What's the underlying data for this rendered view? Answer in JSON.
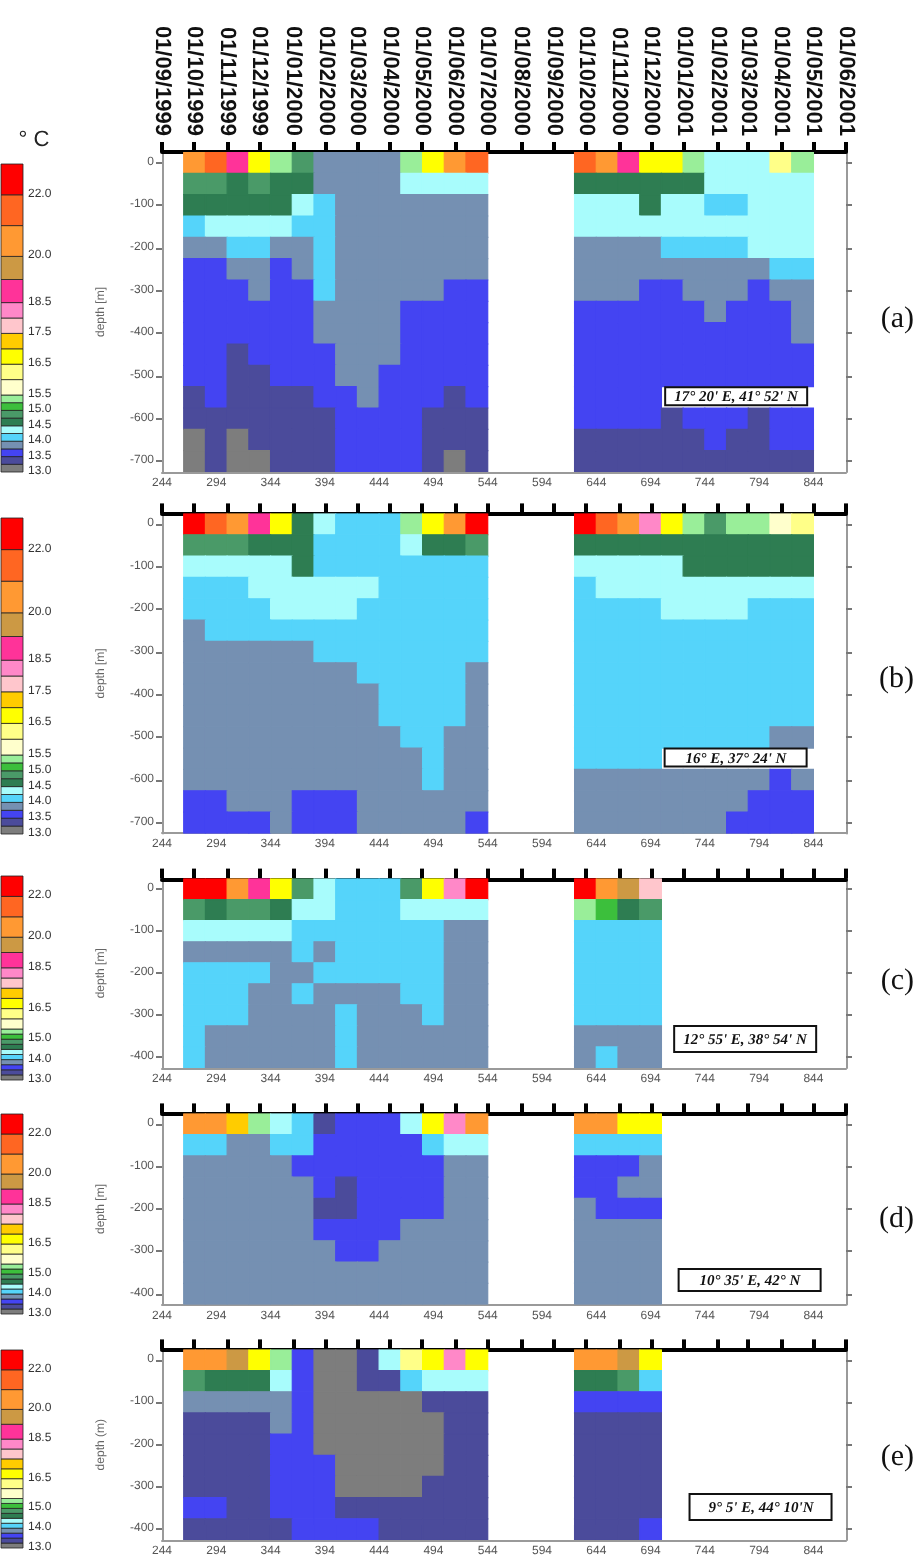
{
  "chart_data": [
    {
      "type": "heatmap",
      "ylabel": "depth [m]",
      "annotations": [
        "(a)",
        "17° 20' E, 41° 52' N"
      ],
      "clabel": "° C",
      "clim": [
        13,
        23
      ],
      "cticks": [
        {
          "value": 13,
          "label": "13.0"
        },
        13.5,
        {
          "value": 14,
          "label": "14.0"
        },
        14.5,
        {
          "value": 15,
          "label": "15.0"
        },
        15.5,
        16.5,
        17.5,
        18.5,
        {
          "value": 20,
          "label": "20.0"
        },
        {
          "value": 22,
          "label": "22.0"
        }
      ],
      "xlim": [
        244,
        874
      ],
      "xticks": [
        244,
        294,
        344,
        394,
        444,
        494,
        544,
        594,
        644,
        694,
        744,
        794,
        844
      ],
      "x2lim": [
        "1999-09-01",
        "2001-06-01"
      ],
      "x2ticks": [
        {
          "value": "1999-09-01",
          "label": "01/09/1999"
        },
        {
          "value": "1999-10-01",
          "label": "01/10/1999"
        },
        {
          "value": "1999-11-01",
          "label": "01/11/1999"
        },
        {
          "value": "1999-12-01",
          "label": "01/12/1999"
        },
        {
          "value": "2000-01-01",
          "label": "01/01/2000"
        },
        {
          "value": "2000-02-01",
          "label": "01/02/2000"
        },
        {
          "value": "2000-03-01",
          "label": "01/03/2000"
        },
        {
          "value": "2000-04-01",
          "label": "01/04/2000"
        },
        {
          "value": "2000-05-01",
          "label": "01/05/2000"
        },
        {
          "value": "2000-06-01",
          "label": "01/06/2000"
        },
        {
          "value": "2000-07-01",
          "label": "01/07/2000"
        },
        {
          "value": "2000-08-01",
          "label": "01/08/2000"
        },
        {
          "value": "2000-09-01",
          "label": "01/09/2000"
        },
        {
          "value": "2000-10-01",
          "label": "01/10/2000"
        },
        {
          "value": "2000-11-01",
          "label": "01/11/2000"
        },
        {
          "value": "2000-12-01",
          "label": "01/12/2000"
        },
        {
          "value": "2001-01-01",
          "label": "01/01/2001"
        },
        {
          "value": "2001-02-01",
          "label": "01/02/2001"
        },
        {
          "value": "2001-03-01",
          "label": "01/03/2001"
        },
        {
          "value": "2001-04-01",
          "label": "01/04/2001"
        },
        {
          "value": "2001-05-01",
          "label": "01/05/2001"
        },
        {
          "value": "2001-06-01",
          "label": "01/06/2001"
        }
      ],
      "x": [
        254,
        274,
        294,
        314,
        334,
        354,
        374,
        394,
        414,
        434,
        454,
        474,
        494,
        514,
        534,
        554,
        574,
        594,
        614,
        634,
        654,
        674,
        694,
        714,
        734,
        754,
        774,
        794,
        814,
        834,
        854
      ],
      "y_categories": [
        "0",
        null,
        "-100",
        null,
        "-200",
        null,
        "-300",
        null,
        "-400",
        null,
        "-500",
        null,
        "-600",
        null,
        "-700"
      ],
      "cells": [
        [
          null,
          20.5,
          21.5,
          18.9,
          16.8,
          15.4,
          14.9,
          13.9,
          13.9,
          13.9,
          13.9,
          15.4,
          16.8,
          20.5,
          21.5,
          null,
          null,
          null,
          null,
          21.5,
          20.5,
          18.9,
          16.8,
          16.8,
          15.4,
          14.4,
          14.4,
          14.4,
          16.2,
          15.4,
          null
        ],
        [
          null,
          14.9,
          14.9,
          14.6,
          14.9,
          14.6,
          14.6,
          13.9,
          13.9,
          13.9,
          13.9,
          14.4,
          14.4,
          14.4,
          14.4,
          null,
          null,
          null,
          null,
          14.6,
          14.6,
          14.6,
          14.6,
          14.6,
          14.6,
          14.4,
          14.4,
          14.4,
          14.4,
          14.4,
          null
        ],
        [
          null,
          14.6,
          14.6,
          14.6,
          14.6,
          14.6,
          14.4,
          14.1,
          13.9,
          13.9,
          13.9,
          13.9,
          13.9,
          13.9,
          13.9,
          null,
          null,
          null,
          null,
          14.4,
          14.4,
          14.4,
          14.6,
          14.4,
          14.4,
          14.1,
          14.1,
          14.4,
          14.4,
          14.4,
          null
        ],
        [
          null,
          14.1,
          14.4,
          14.4,
          14.4,
          14.4,
          14.1,
          14.1,
          13.9,
          13.9,
          13.9,
          13.9,
          13.9,
          13.9,
          13.9,
          null,
          null,
          null,
          null,
          14.4,
          14.4,
          14.4,
          14.4,
          14.4,
          14.4,
          14.4,
          14.4,
          14.4,
          14.4,
          14.4,
          null
        ],
        [
          null,
          13.9,
          13.9,
          14.1,
          14.1,
          13.9,
          13.9,
          14.1,
          13.9,
          13.9,
          13.9,
          13.9,
          13.9,
          13.9,
          13.9,
          null,
          null,
          null,
          null,
          13.9,
          13.9,
          13.9,
          13.9,
          14.1,
          14.1,
          14.1,
          14.1,
          14.4,
          14.4,
          14.4,
          null
        ],
        [
          null,
          13.6,
          13.6,
          13.9,
          13.9,
          13.6,
          13.9,
          14.1,
          13.9,
          13.9,
          13.9,
          13.9,
          13.9,
          13.9,
          13.9,
          null,
          null,
          null,
          null,
          13.9,
          13.9,
          13.9,
          13.9,
          13.9,
          13.9,
          13.9,
          13.9,
          13.9,
          14.1,
          14.1,
          null
        ],
        [
          null,
          13.6,
          13.6,
          13.6,
          13.9,
          13.6,
          13.6,
          14.1,
          13.9,
          13.9,
          13.9,
          13.9,
          13.9,
          13.6,
          13.6,
          null,
          null,
          null,
          null,
          13.9,
          13.9,
          13.9,
          13.6,
          13.6,
          13.9,
          13.9,
          13.9,
          13.6,
          13.9,
          13.9,
          null
        ],
        [
          null,
          13.6,
          13.6,
          13.6,
          13.6,
          13.6,
          13.6,
          13.9,
          13.9,
          13.9,
          13.9,
          13.6,
          13.6,
          13.6,
          13.6,
          null,
          null,
          null,
          null,
          13.6,
          13.6,
          13.6,
          13.6,
          13.6,
          13.6,
          13.9,
          13.6,
          13.6,
          13.6,
          13.9,
          null
        ],
        [
          null,
          13.6,
          13.6,
          13.6,
          13.6,
          13.6,
          13.6,
          13.9,
          13.9,
          13.9,
          13.9,
          13.6,
          13.6,
          13.6,
          13.6,
          null,
          null,
          null,
          null,
          13.6,
          13.6,
          13.6,
          13.6,
          13.6,
          13.6,
          13.6,
          13.6,
          13.6,
          13.6,
          13.9,
          null
        ],
        [
          null,
          13.6,
          13.6,
          13.4,
          13.6,
          13.6,
          13.6,
          13.6,
          13.9,
          13.9,
          13.9,
          13.6,
          13.6,
          13.6,
          13.6,
          null,
          null,
          null,
          null,
          13.6,
          13.6,
          13.6,
          13.6,
          13.6,
          13.6,
          13.6,
          13.6,
          13.6,
          13.6,
          13.6,
          null
        ],
        [
          null,
          13.6,
          13.6,
          13.4,
          13.4,
          13.6,
          13.6,
          13.6,
          13.9,
          13.9,
          13.6,
          13.6,
          13.6,
          13.6,
          13.6,
          null,
          null,
          null,
          null,
          13.6,
          13.6,
          13.6,
          13.6,
          13.6,
          13.6,
          13.6,
          13.6,
          13.6,
          13.6,
          13.6,
          null
        ],
        [
          null,
          13.4,
          13.6,
          13.4,
          13.4,
          13.4,
          13.4,
          13.6,
          13.6,
          13.9,
          13.6,
          13.6,
          13.6,
          13.4,
          13.6,
          null,
          null,
          null,
          null,
          13.6,
          13.6,
          13.6,
          13.6,
          null,
          null,
          null,
          null,
          null,
          null,
          null,
          null
        ],
        [
          null,
          13.4,
          13.4,
          13.4,
          13.4,
          13.4,
          13.4,
          13.4,
          13.6,
          13.6,
          13.6,
          13.6,
          13.4,
          13.4,
          13.4,
          null,
          null,
          null,
          null,
          13.6,
          13.6,
          13.6,
          13.6,
          13.4,
          13.6,
          13.6,
          13.6,
          13.4,
          13.6,
          13.6,
          null
        ],
        [
          null,
          13.1,
          13.4,
          13.1,
          13.4,
          13.4,
          13.4,
          13.4,
          13.6,
          13.6,
          13.6,
          13.6,
          13.4,
          13.4,
          13.4,
          null,
          null,
          null,
          null,
          13.4,
          13.4,
          13.4,
          13.4,
          13.4,
          13.4,
          13.6,
          13.4,
          13.4,
          13.6,
          13.6,
          null
        ],
        [
          null,
          13.1,
          13.4,
          13.1,
          13.1,
          13.4,
          13.4,
          13.4,
          13.6,
          13.6,
          13.6,
          13.6,
          13.4,
          13.1,
          13.4,
          null,
          null,
          null,
          null,
          13.4,
          13.4,
          13.4,
          13.4,
          13.4,
          13.4,
          13.4,
          13.4,
          13.4,
          13.4,
          13.4,
          null
        ]
      ]
    },
    {
      "type": "heatmap",
      "ylabel": "depth [m]",
      "annotations": [
        "(b)",
        "16° E, 37° 24' N"
      ],
      "clim": [
        13,
        23
      ],
      "cticks": [
        {
          "value": 13,
          "label": "13.0"
        },
        13.5,
        {
          "value": 14,
          "label": "14.0"
        },
        14.5,
        {
          "value": 15,
          "label": "15.0"
        },
        15.5,
        16.5,
        17.5,
        18.5,
        {
          "value": 20,
          "label": "20.0"
        },
        {
          "value": 22,
          "label": "22.0"
        }
      ],
      "xlim": [
        244,
        874
      ],
      "xticks": [
        244,
        294,
        344,
        394,
        444,
        494,
        544,
        594,
        644,
        694,
        744,
        794,
        844
      ],
      "x": [
        254,
        274,
        294,
        314,
        334,
        354,
        374,
        394,
        414,
        434,
        454,
        474,
        494,
        514,
        534,
        554,
        574,
        594,
        614,
        634,
        654,
        674,
        694,
        714,
        734,
        754,
        774,
        794,
        814,
        834,
        854
      ],
      "y_categories": [
        "0",
        null,
        "-100",
        null,
        "-200",
        null,
        "-300",
        null,
        "-400",
        null,
        "-500",
        null,
        "-600",
        null,
        "-700"
      ],
      "cells": [
        [
          null,
          22.5,
          21.5,
          20.5,
          18.9,
          16.8,
          14.6,
          14.4,
          14.1,
          14.1,
          14.1,
          15.4,
          16.8,
          20.5,
          22.5,
          null,
          null,
          null,
          null,
          22.5,
          21.5,
          20.5,
          18.2,
          16.8,
          15.4,
          14.9,
          15.4,
          15.4,
          15.8,
          16.2,
          null
        ],
        [
          null,
          14.9,
          14.9,
          14.9,
          14.6,
          14.6,
          14.6,
          14.1,
          14.1,
          14.1,
          14.1,
          14.4,
          14.6,
          14.6,
          14.9,
          null,
          null,
          null,
          null,
          14.6,
          14.6,
          14.6,
          14.6,
          14.6,
          14.6,
          14.6,
          14.6,
          14.6,
          14.6,
          14.6,
          null
        ],
        [
          null,
          14.4,
          14.4,
          14.4,
          14.4,
          14.4,
          14.6,
          14.1,
          14.1,
          14.1,
          14.1,
          14.1,
          14.1,
          14.1,
          14.1,
          null,
          null,
          null,
          null,
          14.4,
          14.4,
          14.4,
          14.4,
          14.4,
          14.6,
          14.6,
          14.6,
          14.6,
          14.6,
          14.6,
          null
        ],
        [
          null,
          14.1,
          14.1,
          14.1,
          14.4,
          14.4,
          14.4,
          14.4,
          14.4,
          14.4,
          14.1,
          14.1,
          14.1,
          14.1,
          14.1,
          null,
          null,
          null,
          null,
          14.1,
          14.4,
          14.4,
          14.4,
          14.4,
          14.4,
          14.4,
          14.4,
          14.4,
          14.4,
          14.4,
          null
        ],
        [
          null,
          14.1,
          14.1,
          14.1,
          14.1,
          14.4,
          14.4,
          14.4,
          14.4,
          14.1,
          14.1,
          14.1,
          14.1,
          14.1,
          14.1,
          null,
          null,
          null,
          null,
          14.1,
          14.1,
          14.1,
          14.1,
          14.4,
          14.4,
          14.4,
          14.4,
          14.1,
          14.1,
          14.1,
          null
        ],
        [
          null,
          13.9,
          14.1,
          14.1,
          14.1,
          14.1,
          14.1,
          14.1,
          14.1,
          14.1,
          14.1,
          14.1,
          14.1,
          14.1,
          14.1,
          null,
          null,
          null,
          null,
          14.1,
          14.1,
          14.1,
          14.1,
          14.1,
          14.1,
          14.1,
          14.1,
          14.1,
          14.1,
          14.1,
          null
        ],
        [
          null,
          13.9,
          13.9,
          13.9,
          13.9,
          13.9,
          13.9,
          14.1,
          14.1,
          14.1,
          14.1,
          14.1,
          14.1,
          14.1,
          14.1,
          null,
          null,
          null,
          null,
          14.1,
          14.1,
          14.1,
          14.1,
          14.1,
          14.1,
          14.1,
          14.1,
          14.1,
          14.1,
          14.1,
          null
        ],
        [
          null,
          13.9,
          13.9,
          13.9,
          13.9,
          13.9,
          13.9,
          13.9,
          13.9,
          14.1,
          14.1,
          14.1,
          14.1,
          14.1,
          13.9,
          null,
          null,
          null,
          null,
          14.1,
          14.1,
          14.1,
          14.1,
          14.1,
          14.1,
          14.1,
          14.1,
          14.1,
          14.1,
          14.1,
          null
        ],
        [
          null,
          13.9,
          13.9,
          13.9,
          13.9,
          13.9,
          13.9,
          13.9,
          13.9,
          13.9,
          14.1,
          14.1,
          14.1,
          14.1,
          13.9,
          null,
          null,
          null,
          null,
          14.1,
          14.1,
          14.1,
          14.1,
          14.1,
          14.1,
          14.1,
          14.1,
          14.1,
          14.1,
          14.1,
          null
        ],
        [
          null,
          13.9,
          13.9,
          13.9,
          13.9,
          13.9,
          13.9,
          13.9,
          13.9,
          13.9,
          14.1,
          14.1,
          14.1,
          14.1,
          13.9,
          null,
          null,
          null,
          null,
          14.1,
          14.1,
          14.1,
          14.1,
          14.1,
          14.1,
          14.1,
          14.1,
          14.1,
          14.1,
          14.1,
          null
        ],
        [
          null,
          13.9,
          13.9,
          13.9,
          13.9,
          13.9,
          13.9,
          13.9,
          13.9,
          13.9,
          13.9,
          14.1,
          14.1,
          13.9,
          13.9,
          null,
          null,
          null,
          null,
          14.1,
          14.1,
          14.1,
          14.1,
          14.1,
          14.1,
          14.1,
          14.1,
          14.1,
          13.9,
          13.9,
          null
        ],
        [
          null,
          13.9,
          13.9,
          13.9,
          13.9,
          13.9,
          13.9,
          13.9,
          13.9,
          13.9,
          13.9,
          13.9,
          14.1,
          13.9,
          13.9,
          null,
          null,
          null,
          null,
          14.1,
          14.1,
          14.1,
          14.1,
          null,
          null,
          null,
          null,
          null,
          null,
          null,
          null
        ],
        [
          null,
          13.9,
          13.9,
          13.9,
          13.9,
          13.9,
          13.9,
          13.9,
          13.9,
          13.9,
          13.9,
          13.9,
          14.1,
          13.9,
          13.9,
          null,
          null,
          null,
          null,
          13.9,
          13.9,
          13.9,
          13.9,
          13.9,
          13.9,
          13.9,
          13.9,
          13.9,
          13.6,
          13.9,
          null
        ],
        [
          null,
          13.6,
          13.6,
          13.9,
          13.9,
          13.9,
          13.6,
          13.6,
          13.6,
          13.9,
          13.9,
          13.9,
          13.9,
          13.9,
          13.9,
          null,
          null,
          null,
          null,
          13.9,
          13.9,
          13.9,
          13.9,
          13.9,
          13.9,
          13.9,
          13.9,
          13.6,
          13.6,
          13.6,
          null
        ],
        [
          null,
          13.6,
          13.6,
          13.6,
          13.6,
          13.9,
          13.6,
          13.6,
          13.6,
          13.9,
          13.9,
          13.9,
          13.9,
          13.9,
          13.6,
          null,
          null,
          null,
          null,
          13.9,
          13.9,
          13.9,
          13.9,
          13.9,
          13.9,
          13.9,
          13.6,
          13.6,
          13.6,
          13.6,
          null
        ]
      ]
    },
    {
      "type": "heatmap",
      "ylabel": "depth [m]",
      "annotations": [
        "(c)",
        "12° 55' E, 38° 54' N"
      ],
      "clim": [
        13,
        23
      ],
      "cticks": [
        {
          "value": 13,
          "label": "13.0"
        },
        {
          "value": 14,
          "label": "14.0"
        },
        {
          "value": 15,
          "label": "15.0"
        },
        16.5,
        18.5,
        {
          "value": 20,
          "label": "20.0"
        },
        {
          "value": 22,
          "label": "22.0"
        }
      ],
      "xlim": [
        244,
        874
      ],
      "xticks": [
        244,
        294,
        344,
        394,
        444,
        494,
        544,
        594,
        644,
        694,
        744,
        794,
        844
      ],
      "x": [
        254,
        274,
        294,
        314,
        334,
        354,
        374,
        394,
        414,
        434,
        454,
        474,
        494,
        514,
        534,
        554,
        574,
        594,
        614,
        634,
        654,
        674,
        694,
        714,
        734,
        754,
        774,
        794,
        814,
        834,
        854
      ],
      "y_categories": [
        "0",
        null,
        "-100",
        null,
        "-200",
        null,
        "-300",
        null,
        "-400"
      ],
      "cells": [
        [
          null,
          22.5,
          22.5,
          20.5,
          18.9,
          16.8,
          14.9,
          14.4,
          14.1,
          14.1,
          14.1,
          14.9,
          16.8,
          18.2,
          22.5,
          null,
          null,
          null,
          null,
          22.5,
          20.5,
          19.6,
          17.8,
          null,
          null,
          null,
          null,
          null,
          null,
          null,
          null
        ],
        [
          null,
          14.9,
          14.6,
          14.9,
          14.9,
          14.6,
          14.4,
          14.4,
          14.1,
          14.1,
          14.1,
          14.4,
          14.4,
          14.4,
          14.4,
          null,
          null,
          null,
          null,
          15.4,
          15.1,
          14.6,
          14.9,
          null,
          null,
          null,
          null,
          null,
          null,
          null,
          null
        ],
        [
          null,
          14.4,
          14.4,
          14.4,
          14.4,
          14.4,
          14.1,
          14.1,
          14.1,
          14.1,
          14.1,
          14.1,
          14.1,
          13.9,
          13.9,
          null,
          null,
          null,
          null,
          14.1,
          14.1,
          14.1,
          14.1,
          null,
          null,
          null,
          null,
          null,
          null,
          null,
          null
        ],
        [
          null,
          13.9,
          13.9,
          13.9,
          13.9,
          13.9,
          14.1,
          13.9,
          14.1,
          14.1,
          14.1,
          14.1,
          14.1,
          13.9,
          13.9,
          null,
          null,
          null,
          null,
          14.1,
          14.1,
          14.1,
          14.1,
          null,
          null,
          null,
          null,
          null,
          null,
          null,
          null
        ],
        [
          null,
          14.1,
          14.1,
          14.1,
          14.1,
          13.9,
          13.9,
          14.1,
          14.1,
          14.1,
          14.1,
          14.1,
          14.1,
          13.9,
          13.9,
          null,
          null,
          null,
          null,
          14.1,
          14.1,
          14.1,
          14.1,
          null,
          null,
          null,
          null,
          null,
          null,
          null,
          null
        ],
        [
          null,
          14.1,
          14.1,
          14.1,
          13.9,
          13.9,
          14.1,
          13.9,
          13.9,
          13.9,
          13.9,
          14.1,
          14.1,
          13.9,
          13.9,
          null,
          null,
          null,
          null,
          14.1,
          14.1,
          14.1,
          14.1,
          null,
          null,
          null,
          null,
          null,
          null,
          null,
          null
        ],
        [
          null,
          14.1,
          14.1,
          14.1,
          13.9,
          13.9,
          13.9,
          13.9,
          14.1,
          13.9,
          13.9,
          13.9,
          14.1,
          13.9,
          13.9,
          null,
          null,
          null,
          null,
          14.1,
          14.1,
          14.1,
          14.1,
          null,
          null,
          null,
          null,
          null,
          null,
          null,
          null
        ],
        [
          null,
          14.1,
          13.9,
          13.9,
          13.9,
          13.9,
          13.9,
          13.9,
          14.1,
          13.9,
          13.9,
          13.9,
          13.9,
          13.9,
          13.9,
          null,
          null,
          null,
          null,
          13.9,
          13.9,
          13.9,
          13.9,
          null,
          null,
          null,
          null,
          null,
          null,
          null,
          null
        ],
        [
          null,
          14.1,
          13.9,
          13.9,
          13.9,
          13.9,
          13.9,
          13.9,
          14.1,
          13.9,
          13.9,
          13.9,
          13.9,
          13.9,
          13.9,
          null,
          null,
          null,
          null,
          13.9,
          14.1,
          13.9,
          13.9,
          null,
          null,
          null,
          null,
          null,
          null,
          null,
          null
        ]
      ]
    },
    {
      "type": "heatmap",
      "ylabel": "depth [m]",
      "annotations": [
        "(d)",
        "10° 35' E, 42° N"
      ],
      "clim": [
        13,
        23
      ],
      "cticks": [
        {
          "value": 13,
          "label": "13.0"
        },
        {
          "value": 14,
          "label": "14.0"
        },
        {
          "value": 15,
          "label": "15.0"
        },
        16.5,
        18.5,
        {
          "value": 20,
          "label": "20.0"
        },
        {
          "value": 22,
          "label": "22.0"
        }
      ],
      "xlim": [
        244,
        874
      ],
      "xticks": [
        244,
        294,
        344,
        394,
        444,
        494,
        544,
        594,
        644,
        694,
        744,
        794,
        844
      ],
      "x": [
        254,
        274,
        294,
        314,
        334,
        354,
        374,
        394,
        414,
        434,
        454,
        474,
        494,
        514,
        534,
        554,
        574,
        594,
        614,
        634,
        654,
        674,
        694,
        714,
        734,
        754,
        774,
        794,
        814,
        834,
        854
      ],
      "y_categories": [
        "0",
        null,
        "-100",
        null,
        "-200",
        null,
        "-300",
        null,
        "-400"
      ],
      "cells": [
        [
          null,
          20.5,
          20.5,
          17.2,
          15.4,
          14.4,
          14.1,
          13.4,
          13.6,
          13.6,
          13.6,
          14.4,
          16.8,
          18.2,
          20.5,
          null,
          null,
          null,
          null,
          20.5,
          20.5,
          16.8,
          16.8,
          null,
          null,
          null,
          null,
          null,
          null,
          null,
          null
        ],
        [
          null,
          14.1,
          14.1,
          13.9,
          13.9,
          14.1,
          14.1,
          13.6,
          13.6,
          13.6,
          13.6,
          13.6,
          14.1,
          14.4,
          14.4,
          null,
          null,
          null,
          null,
          14.1,
          14.1,
          14.1,
          14.1,
          null,
          null,
          null,
          null,
          null,
          null,
          null,
          null
        ],
        [
          null,
          13.9,
          13.9,
          13.9,
          13.9,
          13.9,
          13.6,
          13.6,
          13.6,
          13.6,
          13.6,
          13.6,
          13.6,
          13.9,
          13.9,
          null,
          null,
          null,
          null,
          13.6,
          13.6,
          13.6,
          13.9,
          null,
          null,
          null,
          null,
          null,
          null,
          null,
          null
        ],
        [
          null,
          13.9,
          13.9,
          13.9,
          13.9,
          13.9,
          13.9,
          13.6,
          13.4,
          13.6,
          13.6,
          13.6,
          13.6,
          13.9,
          13.9,
          null,
          null,
          null,
          null,
          13.6,
          13.6,
          13.9,
          13.9,
          null,
          null,
          null,
          null,
          null,
          null,
          null,
          null
        ],
        [
          null,
          13.9,
          13.9,
          13.9,
          13.9,
          13.9,
          13.9,
          13.4,
          13.4,
          13.6,
          13.6,
          13.6,
          13.6,
          13.9,
          13.9,
          null,
          null,
          null,
          null,
          13.9,
          13.6,
          13.6,
          13.6,
          null,
          null,
          null,
          null,
          null,
          null,
          null,
          null
        ],
        [
          null,
          13.9,
          13.9,
          13.9,
          13.9,
          13.9,
          13.9,
          13.6,
          13.6,
          13.6,
          13.6,
          13.9,
          13.9,
          13.9,
          13.9,
          null,
          null,
          null,
          null,
          13.9,
          13.9,
          13.9,
          13.9,
          null,
          null,
          null,
          null,
          null,
          null,
          null,
          null
        ],
        [
          null,
          13.9,
          13.9,
          13.9,
          13.9,
          13.9,
          13.9,
          13.9,
          13.6,
          13.6,
          13.9,
          13.9,
          13.9,
          13.9,
          13.9,
          null,
          null,
          null,
          null,
          13.9,
          13.9,
          13.9,
          13.9,
          null,
          null,
          null,
          null,
          null,
          null,
          null,
          null
        ],
        [
          null,
          13.9,
          13.9,
          13.9,
          13.9,
          13.9,
          13.9,
          13.9,
          13.9,
          13.9,
          13.9,
          13.9,
          13.9,
          13.9,
          13.9,
          null,
          null,
          null,
          null,
          13.9,
          13.9,
          13.9,
          13.9,
          null,
          null,
          null,
          null,
          null,
          null,
          null,
          null
        ],
        [
          null,
          13.9,
          13.9,
          13.9,
          13.9,
          13.9,
          13.9,
          13.9,
          13.9,
          13.9,
          13.9,
          13.9,
          13.9,
          13.9,
          13.9,
          null,
          null,
          null,
          null,
          13.9,
          13.9,
          13.9,
          13.9,
          null,
          null,
          null,
          null,
          null,
          null,
          null,
          null
        ]
      ]
    },
    {
      "type": "heatmap",
      "ylabel": "depth (m)",
      "annotations": [
        "(e)",
        "9° 5' E, 44° 10'N"
      ],
      "clim": [
        13,
        23
      ],
      "cticks": [
        {
          "value": 13,
          "label": "13.0"
        },
        {
          "value": 14,
          "label": "14.0"
        },
        {
          "value": 15,
          "label": "15.0"
        },
        16.5,
        18.5,
        {
          "value": 20,
          "label": "20.0"
        },
        {
          "value": 22,
          "label": "22.0"
        }
      ],
      "xlim": [
        244,
        874
      ],
      "xticks": [
        244,
        294,
        344,
        394,
        444,
        494,
        544,
        594,
        644,
        694,
        744,
        794,
        844
      ],
      "x": [
        254,
        274,
        294,
        314,
        334,
        354,
        374,
        394,
        414,
        434,
        454,
        474,
        494,
        514,
        534,
        554,
        574,
        594,
        614,
        634,
        654,
        674,
        694,
        714,
        734,
        754,
        774,
        794,
        814,
        834,
        854
      ],
      "y_categories": [
        "0",
        null,
        "-100",
        null,
        "-200",
        null,
        "-300",
        null,
        "-400"
      ],
      "cells": [
        [
          null,
          20.5,
          20.5,
          19.6,
          16.8,
          15.4,
          13.6,
          13.1,
          13.1,
          13.4,
          14.4,
          16.2,
          16.8,
          18.2,
          16.8,
          null,
          null,
          null,
          null,
          20.5,
          20.5,
          19.6,
          16.8,
          null,
          null,
          null,
          null,
          null,
          null,
          null,
          null
        ],
        [
          null,
          14.9,
          14.6,
          14.6,
          14.6,
          14.4,
          13.6,
          13.1,
          13.1,
          13.4,
          13.4,
          14.1,
          14.4,
          14.4,
          14.4,
          null,
          null,
          null,
          null,
          14.6,
          14.6,
          14.9,
          14.1,
          null,
          null,
          null,
          null,
          null,
          null,
          null,
          null
        ],
        [
          null,
          13.9,
          13.9,
          13.9,
          13.9,
          13.9,
          13.6,
          13.1,
          13.1,
          13.1,
          13.1,
          13.1,
          13.4,
          13.4,
          13.4,
          null,
          null,
          null,
          null,
          13.6,
          13.6,
          13.6,
          13.6,
          null,
          null,
          null,
          null,
          null,
          null,
          null,
          null
        ],
        [
          null,
          13.4,
          13.4,
          13.4,
          13.4,
          13.9,
          13.6,
          13.1,
          13.1,
          13.1,
          13.1,
          13.1,
          13.1,
          13.4,
          13.4,
          null,
          null,
          null,
          null,
          13.4,
          13.4,
          13.4,
          13.4,
          null,
          null,
          null,
          null,
          null,
          null,
          null,
          null
        ],
        [
          null,
          13.4,
          13.4,
          13.4,
          13.4,
          13.6,
          13.6,
          13.1,
          13.1,
          13.1,
          13.1,
          13.1,
          13.1,
          13.4,
          13.4,
          null,
          null,
          null,
          null,
          13.4,
          13.4,
          13.4,
          13.4,
          null,
          null,
          null,
          null,
          null,
          null,
          null,
          null
        ],
        [
          null,
          13.4,
          13.4,
          13.4,
          13.4,
          13.6,
          13.6,
          13.6,
          13.1,
          13.1,
          13.1,
          13.1,
          13.1,
          13.4,
          13.4,
          null,
          null,
          null,
          null,
          13.4,
          13.4,
          13.4,
          13.4,
          null,
          null,
          null,
          null,
          null,
          null,
          null,
          null
        ],
        [
          null,
          13.4,
          13.4,
          13.4,
          13.4,
          13.6,
          13.6,
          13.6,
          13.1,
          13.1,
          13.1,
          13.1,
          13.4,
          13.4,
          13.4,
          null,
          null,
          null,
          null,
          13.4,
          13.4,
          13.4,
          13.4,
          null,
          null,
          null,
          null,
          null,
          null,
          null,
          null
        ],
        [
          null,
          13.6,
          13.6,
          13.4,
          13.4,
          13.6,
          13.6,
          13.6,
          13.4,
          13.4,
          13.4,
          13.4,
          13.4,
          13.4,
          13.4,
          null,
          null,
          null,
          null,
          13.4,
          13.4,
          13.4,
          13.4,
          null,
          null,
          null,
          null,
          null,
          null,
          null,
          null
        ],
        [
          null,
          13.4,
          13.4,
          13.4,
          13.4,
          13.4,
          13.6,
          13.6,
          13.6,
          13.6,
          13.4,
          13.4,
          13.4,
          13.4,
          13.4,
          null,
          null,
          null,
          null,
          13.4,
          13.4,
          13.4,
          13.6,
          null,
          null,
          null,
          null,
          null,
          null,
          null,
          null
        ]
      ]
    }
  ]
}
